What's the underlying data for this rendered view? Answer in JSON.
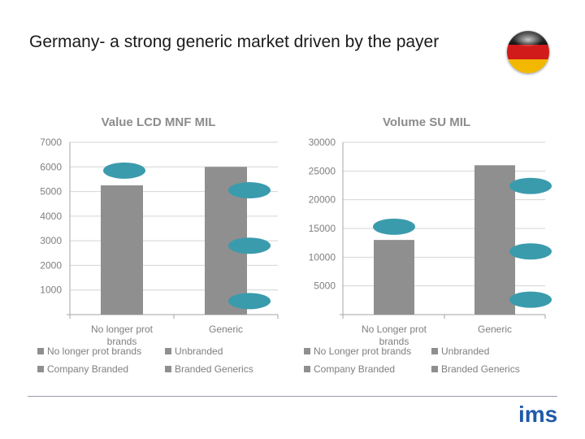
{
  "slide": {
    "title": "Germany- a strong generic market driven by the payer",
    "logo_text": "ims",
    "flag_icon": "germany-flag-icon"
  },
  "colors": {
    "bar": "#8f8f8f",
    "marker": "#3a9bad",
    "grid": "#d4d4d4",
    "axis": "#a6a6a6",
    "text": "#7f7f7f",
    "title_text": "#8c8c8c"
  },
  "chart_data": [
    {
      "type": "bar",
      "title": "Value LCD MNF MIL",
      "categories": [
        "No longer prot brands",
        "Generic"
      ],
      "category_lines": [
        [
          "No longer prot",
          "brands"
        ],
        [
          "Generic"
        ]
      ],
      "series": [
        {
          "name": "No longer prot brands",
          "values": [
            5250,
            0
          ]
        },
        {
          "name": "Unbranded",
          "values": [
            0,
            0
          ]
        },
        {
          "name": "Company Branded",
          "values": [
            0,
            0
          ]
        },
        {
          "name": "Branded Generics",
          "values": [
            0,
            6000
          ]
        }
      ],
      "totals": [
        5250,
        6000
      ],
      "ylim": [
        0,
        7000
      ],
      "yticks": [
        1000,
        2000,
        3000,
        4000,
        5000,
        6000,
        7000
      ],
      "legend": [
        "No longer prot brands",
        "Unbranded",
        "Company Branded",
        "Branded Generics"
      ],
      "annotations": [
        {
          "category": 0,
          "value": 5850
        },
        {
          "category": 1,
          "value": 5050
        },
        {
          "category": 1,
          "value": 2800
        },
        {
          "category": 1,
          "value": 550
        }
      ]
    },
    {
      "type": "bar",
      "title": "Volume SU MIL",
      "categories": [
        "No Longer prot brands",
        "Generic"
      ],
      "category_lines": [
        [
          "No Longer prot",
          "brands"
        ],
        [
          "Generic"
        ]
      ],
      "series": [
        {
          "name": "No Longer prot brands",
          "values": [
            13000,
            0
          ]
        },
        {
          "name": "Unbranded",
          "values": [
            0,
            0
          ]
        },
        {
          "name": "Company Branded",
          "values": [
            0,
            0
          ]
        },
        {
          "name": "Branded Generics",
          "values": [
            0,
            26000
          ]
        }
      ],
      "totals": [
        13000,
        26000
      ],
      "ylim": [
        0,
        30000
      ],
      "yticks": [
        5000,
        10000,
        15000,
        20000,
        25000,
        30000
      ],
      "legend": [
        "No Longer prot brands",
        "Unbranded",
        "Company Branded",
        "Branded Generics"
      ],
      "annotations": [
        {
          "category": 0,
          "value": 15300
        },
        {
          "category": 1,
          "value": 22400
        },
        {
          "category": 1,
          "value": 11000
        },
        {
          "category": 1,
          "value": 2600
        }
      ]
    }
  ]
}
